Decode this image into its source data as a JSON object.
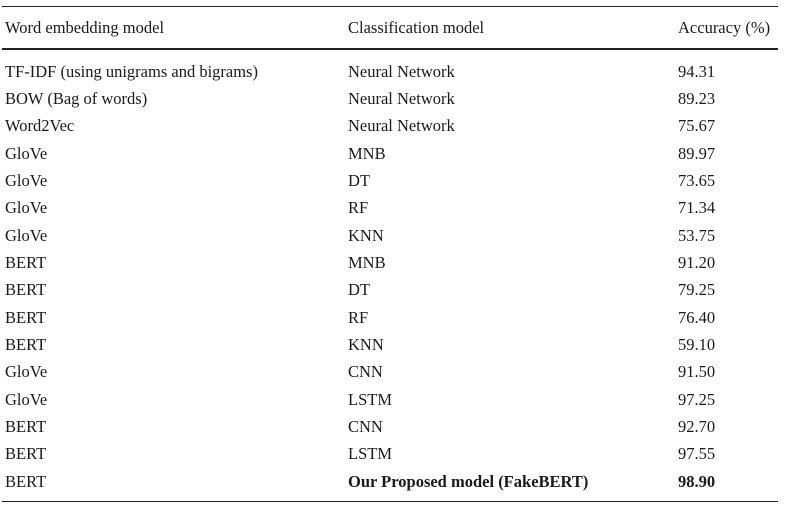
{
  "table": {
    "headers": {
      "embedding": "Word embedding model",
      "classifier": "Classification model",
      "accuracy": "Accuracy (%)"
    },
    "rows": [
      {
        "embedding": "TF-IDF (using unigrams and bigrams)",
        "classifier": "Neural Network",
        "accuracy": "94.31"
      },
      {
        "embedding": "BOW (Bag of words)",
        "classifier": "Neural Network",
        "accuracy": "89.23"
      },
      {
        "embedding": "Word2Vec",
        "classifier": "Neural Network",
        "accuracy": "75.67"
      },
      {
        "embedding": "GloVe",
        "classifier": "MNB",
        "accuracy": "89.97"
      },
      {
        "embedding": "GloVe",
        "classifier": "DT",
        "accuracy": "73.65"
      },
      {
        "embedding": "GloVe",
        "classifier": "RF",
        "accuracy": "71.34"
      },
      {
        "embedding": "GloVe",
        "classifier": "KNN",
        "accuracy": "53.75"
      },
      {
        "embedding": "BERT",
        "classifier": "MNB",
        "accuracy": "91.20"
      },
      {
        "embedding": "BERT",
        "classifier": "DT",
        "accuracy": "79.25"
      },
      {
        "embedding": "BERT",
        "classifier": "RF",
        "accuracy": "76.40"
      },
      {
        "embedding": "BERT",
        "classifier": "KNN",
        "accuracy": "59.10"
      },
      {
        "embedding": "GloVe",
        "classifier": "CNN",
        "accuracy": "91.50"
      },
      {
        "embedding": "GloVe",
        "classifier": "LSTM",
        "accuracy": "97.25"
      },
      {
        "embedding": "BERT",
        "classifier": "CNN",
        "accuracy": "92.70"
      },
      {
        "embedding": "BERT",
        "classifier": "LSTM",
        "accuracy": "97.55"
      },
      {
        "embedding": "BERT",
        "classifier": "Our Proposed model (FakeBERT)",
        "accuracy": "98.90"
      }
    ]
  }
}
